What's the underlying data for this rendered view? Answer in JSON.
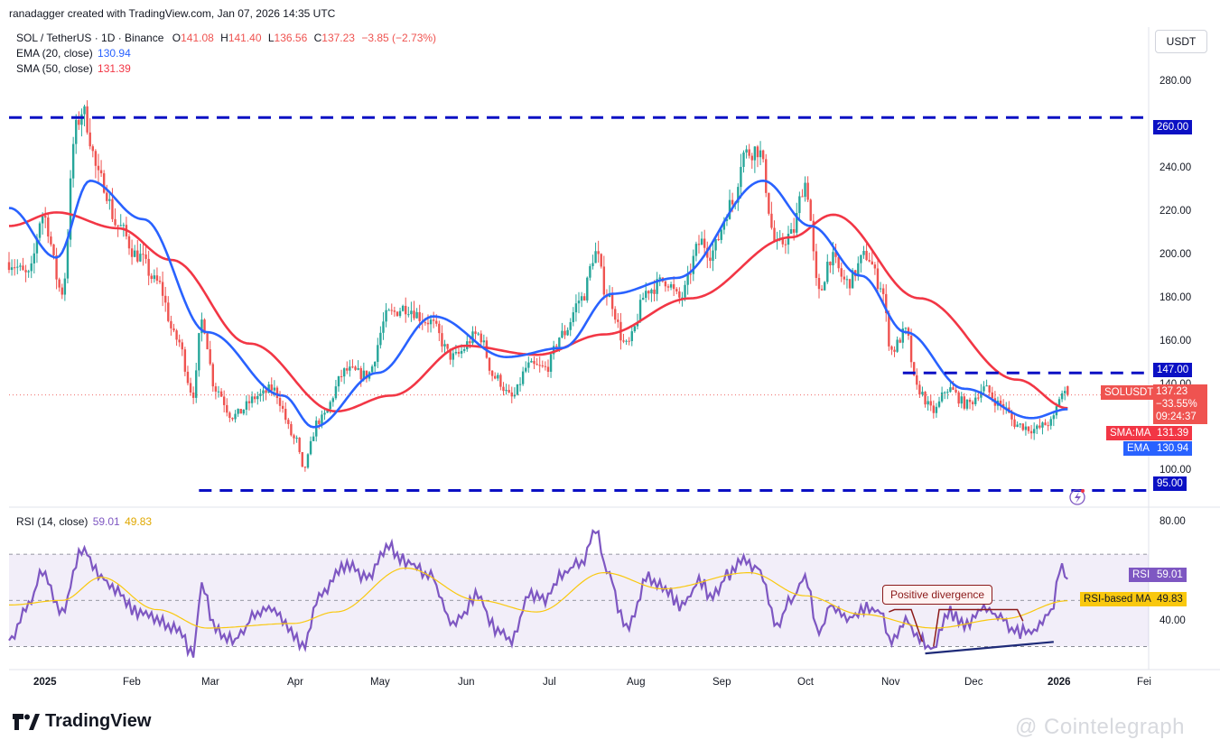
{
  "header": {
    "text": "ranadagger created with TradingView.com, Jan 07, 2026 14:35 UTC"
  },
  "legend": {
    "symbol": "SOL / TetherUS · 1D · Binance",
    "open_label": "O",
    "open": "141.08",
    "high_label": "H",
    "high": "141.40",
    "low_label": "L",
    "low": "136.56",
    "close_label": "C",
    "close": "137.23",
    "change": "−3.85 (−2.73%)",
    "ema_label": "EMA (20, close)",
    "ema_value": "130.94",
    "sma_label": "SMA (50, close)",
    "sma_value": "131.39",
    "rsi_label": "RSI (14, close)",
    "rsi_value": "59.01",
    "rsi_ma_value": "49.83"
  },
  "currency_button": "USDT",
  "price_axis": {
    "ticks": [
      "280.00",
      "240.00",
      "220.00",
      "200.00",
      "180.00",
      "160.00",
      "140.00",
      "100.00"
    ]
  },
  "rsi_axis": {
    "ticks": [
      "80.00",
      "40.00"
    ]
  },
  "time_axis": {
    "ticks": [
      "2025",
      "Feb",
      "Mar",
      "Apr",
      "May",
      "Jun",
      "Jul",
      "Aug",
      "Sep",
      "Oct",
      "Nov",
      "Dec",
      "2026",
      "Fei"
    ]
  },
  "levels": {
    "l260": "260.00",
    "l147": "147.00",
    "l95": "95.00"
  },
  "tags": {
    "symbol": "SOLUSDT",
    "price": "137.23",
    "change_pct": "−33.55%",
    "countdown": "09:24:37",
    "sma_name": "SMA:MA",
    "sma": "131.39",
    "ema_name": "EMA",
    "ema": "130.94",
    "rsi_name": "RSI",
    "rsi": "59.01",
    "rsi_ma_name": "RSI-based MA",
    "rsi_ma": "49.83"
  },
  "annotation": {
    "divergence": "Positive divergence"
  },
  "branding": {
    "tradingview": "TradingView",
    "watermark": "@ Cointelegraph"
  },
  "colors": {
    "up": "#26a69a",
    "down": "#ef5350",
    "ema": "#2962ff",
    "sma": "#f23645",
    "rsi": "#7e57c2",
    "rsi_ma": "#f9c80e",
    "level": "#0b10c4"
  },
  "chart_data": {
    "type": "candlestick",
    "title": "SOL / TetherUS · 1D · Binance",
    "ylim": [
      88,
      300
    ],
    "x_range": [
      "2024-12-24",
      "2026-02-05"
    ],
    "horizontal_levels": [
      260,
      147,
      95
    ],
    "anchors": [
      [
        "2024-12-24",
        196
      ],
      [
        "2024-12-31",
        190
      ],
      [
        "2025-01-05",
        217
      ],
      [
        "2025-01-12",
        183
      ],
      [
        "2025-01-17",
        255
      ],
      [
        "2025-01-19",
        263
      ],
      [
        "2025-01-26",
        232
      ],
      [
        "2025-02-01",
        212
      ],
      [
        "2025-02-08",
        199
      ],
      [
        "2025-02-15",
        187
      ],
      [
        "2025-02-22",
        162
      ],
      [
        "2025-02-28",
        138
      ],
      [
        "2025-03-03",
        170
      ],
      [
        "2025-03-08",
        140
      ],
      [
        "2025-03-14",
        128
      ],
      [
        "2025-03-24",
        137
      ],
      [
        "2025-03-28",
        140
      ],
      [
        "2025-04-06",
        117
      ],
      [
        "2025-04-08",
        104
      ],
      [
        "2025-04-14",
        126
      ],
      [
        "2025-04-24",
        148
      ],
      [
        "2025-05-01",
        146
      ],
      [
        "2025-05-09",
        173
      ],
      [
        "2025-05-15",
        176
      ],
      [
        "2025-05-23",
        170
      ],
      [
        "2025-06-01",
        154
      ],
      [
        "2025-06-10",
        164
      ],
      [
        "2025-06-16",
        145
      ],
      [
        "2025-06-22",
        136
      ],
      [
        "2025-06-28",
        150
      ],
      [
        "2025-07-04",
        149
      ],
      [
        "2025-07-10",
        164
      ],
      [
        "2025-07-17",
        180
      ],
      [
        "2025-07-22",
        200
      ],
      [
        "2025-07-26",
        182
      ],
      [
        "2025-08-02",
        159
      ],
      [
        "2025-08-10",
        184
      ],
      [
        "2025-08-16",
        188
      ],
      [
        "2025-08-21",
        180
      ],
      [
        "2025-08-29",
        205
      ],
      [
        "2025-09-01",
        200
      ],
      [
        "2025-09-09",
        222
      ],
      [
        "2025-09-13",
        244
      ],
      [
        "2025-09-18",
        246
      ],
      [
        "2025-09-25",
        203
      ],
      [
        "2025-09-30",
        208
      ],
      [
        "2025-10-05",
        231
      ],
      [
        "2025-10-10",
        182
      ],
      [
        "2025-10-14",
        198
      ],
      [
        "2025-10-20",
        187
      ],
      [
        "2025-10-27",
        199
      ],
      [
        "2025-11-01",
        186
      ],
      [
        "2025-11-05",
        157
      ],
      [
        "2025-11-10",
        165
      ],
      [
        "2025-11-14",
        140
      ],
      [
        "2025-11-20",
        130
      ],
      [
        "2025-11-25",
        140
      ],
      [
        "2025-12-02",
        133
      ],
      [
        "2025-12-08",
        140
      ],
      [
        "2025-12-14",
        133
      ],
      [
        "2025-12-20",
        124
      ],
      [
        "2025-12-26",
        122
      ],
      [
        "2026-01-01",
        125
      ],
      [
        "2026-01-05",
        138
      ],
      [
        "2026-01-07",
        137.23
      ]
    ],
    "ema20_anchors": [
      [
        "2024-12-24",
        220
      ],
      [
        "2025-01-10",
        198
      ],
      [
        "2025-01-22",
        232
      ],
      [
        "2025-02-10",
        215
      ],
      [
        "2025-03-05",
        165
      ],
      [
        "2025-04-01",
        137
      ],
      [
        "2025-04-12",
        123
      ],
      [
        "2025-05-05",
        147
      ],
      [
        "2025-05-25",
        172
      ],
      [
        "2025-06-20",
        154
      ],
      [
        "2025-07-10",
        158
      ],
      [
        "2025-07-28",
        182
      ],
      [
        "2025-08-20",
        189
      ],
      [
        "2025-09-20",
        232
      ],
      [
        "2025-10-07",
        212
      ],
      [
        "2025-10-25",
        190
      ],
      [
        "2025-11-10",
        165
      ],
      [
        "2025-12-01",
        140
      ],
      [
        "2025-12-25",
        127
      ],
      [
        "2026-01-07",
        130.94
      ]
    ],
    "sma50_anchors": [
      [
        "2024-12-24",
        212
      ],
      [
        "2025-01-10",
        218
      ],
      [
        "2025-02-01",
        211
      ],
      [
        "2025-02-20",
        197
      ],
      [
        "2025-03-20",
        160
      ],
      [
        "2025-04-20",
        130
      ],
      [
        "2025-05-10",
        137
      ],
      [
        "2025-06-05",
        159
      ],
      [
        "2025-07-01",
        155
      ],
      [
        "2025-07-25",
        164
      ],
      [
        "2025-08-25",
        180
      ],
      [
        "2025-09-30",
        207
      ],
      [
        "2025-10-15",
        217
      ],
      [
        "2025-11-15",
        180
      ],
      [
        "2025-12-20",
        144
      ],
      [
        "2026-01-07",
        131.39
      ]
    ],
    "rsi": {
      "ylim": [
        20,
        90
      ],
      "overbought": 70,
      "oversold": 30,
      "anchors": [
        [
          "2024-12-24",
          33
        ],
        [
          "2024-12-31",
          48
        ],
        [
          "2025-01-05",
          63
        ],
        [
          "2025-01-12",
          45
        ],
        [
          "2025-01-19",
          72
        ],
        [
          "2025-01-26",
          60
        ],
        [
          "2025-02-01",
          53
        ],
        [
          "2025-02-08",
          45
        ],
        [
          "2025-02-15",
          42
        ],
        [
          "2025-02-22",
          38
        ],
        [
          "2025-02-28",
          27
        ],
        [
          "2025-03-03",
          56
        ],
        [
          "2025-03-08",
          37
        ],
        [
          "2025-03-14",
          33
        ],
        [
          "2025-03-24",
          45
        ],
        [
          "2025-03-28",
          46
        ],
        [
          "2025-04-06",
          34
        ],
        [
          "2025-04-08",
          30
        ],
        [
          "2025-04-14",
          52
        ],
        [
          "2025-04-24",
          65
        ],
        [
          "2025-05-01",
          60
        ],
        [
          "2025-05-09",
          73
        ],
        [
          "2025-05-15",
          67
        ],
        [
          "2025-05-23",
          62
        ],
        [
          "2025-06-01",
          40
        ],
        [
          "2025-06-10",
          52
        ],
        [
          "2025-06-16",
          38
        ],
        [
          "2025-06-22",
          33
        ],
        [
          "2025-06-28",
          52
        ],
        [
          "2025-07-04",
          50
        ],
        [
          "2025-07-10",
          62
        ],
        [
          "2025-07-17",
          67
        ],
        [
          "2025-07-22",
          80
        ],
        [
          "2025-07-26",
          63
        ],
        [
          "2025-08-02",
          38
        ],
        [
          "2025-08-10",
          60
        ],
        [
          "2025-08-16",
          55
        ],
        [
          "2025-08-21",
          48
        ],
        [
          "2025-08-29",
          58
        ],
        [
          "2025-09-01",
          52
        ],
        [
          "2025-09-09",
          62
        ],
        [
          "2025-09-13",
          68
        ],
        [
          "2025-09-18",
          64
        ],
        [
          "2025-09-25",
          40
        ],
        [
          "2025-09-30",
          50
        ],
        [
          "2025-10-05",
          60
        ],
        [
          "2025-10-10",
          36
        ],
        [
          "2025-10-14",
          48
        ],
        [
          "2025-10-20",
          42
        ],
        [
          "2025-10-27",
          47
        ],
        [
          "2025-11-01",
          45
        ],
        [
          "2025-11-05",
          32
        ],
        [
          "2025-11-10",
          42
        ],
        [
          "2025-11-14",
          34
        ],
        [
          "2025-11-20",
          29
        ],
        [
          "2025-11-25",
          45
        ],
        [
          "2025-12-02",
          39
        ],
        [
          "2025-12-08",
          47
        ],
        [
          "2025-12-14",
          42
        ],
        [
          "2025-12-20",
          36
        ],
        [
          "2025-12-26",
          37
        ],
        [
          "2026-01-01",
          45
        ],
        [
          "2026-01-05",
          66
        ],
        [
          "2026-01-07",
          59.01
        ]
      ],
      "ma_anchors": [
        [
          "2024-12-24",
          48
        ],
        [
          "2025-01-12",
          50
        ],
        [
          "2025-01-26",
          60
        ],
        [
          "2025-02-15",
          46
        ],
        [
          "2025-03-05",
          38
        ],
        [
          "2025-04-05",
          40
        ],
        [
          "2025-04-20",
          45
        ],
        [
          "2025-05-15",
          64
        ],
        [
          "2025-06-10",
          50
        ],
        [
          "2025-07-01",
          45
        ],
        [
          "2025-07-25",
          62
        ],
        [
          "2025-08-15",
          55
        ],
        [
          "2025-09-15",
          62
        ],
        [
          "2025-10-05",
          52
        ],
        [
          "2025-10-25",
          44
        ],
        [
          "2025-11-20",
          38
        ],
        [
          "2025-12-15",
          42
        ],
        [
          "2026-01-07",
          49.83
        ]
      ]
    },
    "divergence_line": [
      [
        "2025-11-17",
        27
      ],
      [
        "2026-01-02",
        32
      ]
    ]
  }
}
